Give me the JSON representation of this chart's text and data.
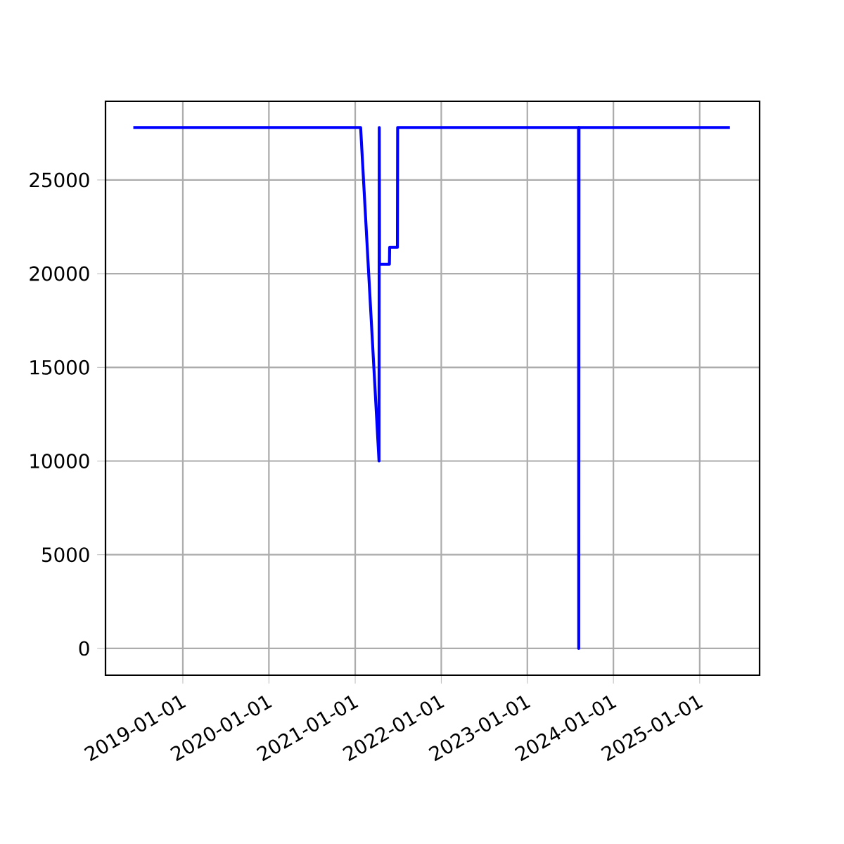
{
  "chart_data": {
    "type": "line",
    "x": [
      "2018-06-05",
      "2021-01-24",
      "2021-04-12",
      "2021-04-13",
      "2021-04-14",
      "2021-05-26",
      "2021-05-27",
      "2021-06-29",
      "2021-06-30",
      "2023-08-06",
      "2023-08-07",
      "2023-08-08",
      "2025-05-09"
    ],
    "series": [
      {
        "color": "#0000ff",
        "values": [
          27800,
          27800,
          10000,
          27800,
          20500,
          20500,
          21400,
          21400,
          27800,
          27800,
          0,
          27800,
          27800
        ]
      }
    ],
    "xlim": [
      "2018-02-07",
      "2025-09-12"
    ],
    "ylim": [
      -1430,
      29200
    ],
    "xticks": [
      "2019-01-01",
      "2020-01-01",
      "2021-01-01",
      "2022-01-01",
      "2023-01-01",
      "2024-01-01",
      "2025-01-01"
    ],
    "yticks": [
      0,
      5000,
      10000,
      15000,
      20000,
      25000
    ],
    "grid": true,
    "marker": "none",
    "line_style": "solid"
  }
}
